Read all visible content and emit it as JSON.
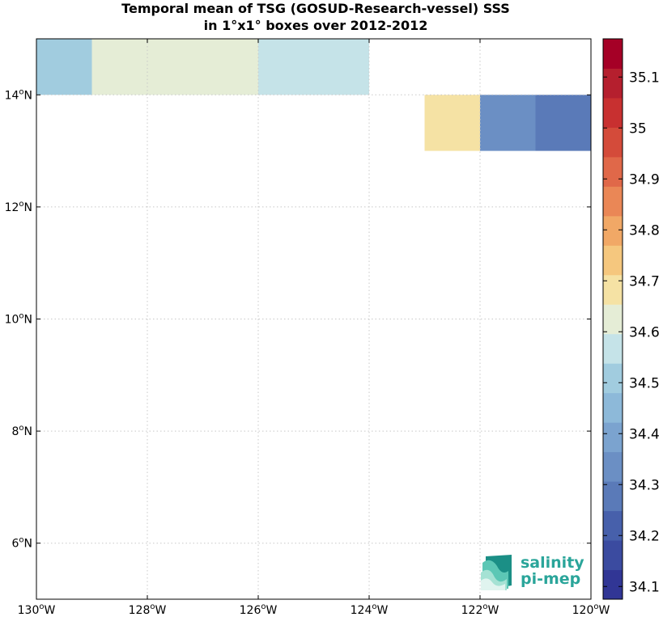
{
  "title_line1": "Temporal mean of TSG (GOSUD-Research-vessel) SSS",
  "title_line2": "in 1°x1° boxes over 2012-2012",
  "map": {
    "lon_range": [
      -130,
      -120
    ],
    "lat_range": [
      5,
      15
    ],
    "grid": "dotted",
    "x_ticks": [
      {
        "value": -130,
        "deg": "130",
        "hemi": "W"
      },
      {
        "value": -128,
        "deg": "128",
        "hemi": "W"
      },
      {
        "value": -126,
        "deg": "126",
        "hemi": "W"
      },
      {
        "value": -124,
        "deg": "124",
        "hemi": "W"
      },
      {
        "value": -122,
        "deg": "122",
        "hemi": "W"
      },
      {
        "value": -120,
        "deg": "120",
        "hemi": "W"
      }
    ],
    "y_ticks": [
      {
        "value": 6,
        "deg": "6",
        "hemi": "N"
      },
      {
        "value": 8,
        "deg": "8",
        "hemi": "N"
      },
      {
        "value": 10,
        "deg": "10",
        "hemi": "N"
      },
      {
        "value": 12,
        "deg": "12",
        "hemi": "N"
      },
      {
        "value": 14,
        "deg": "14",
        "hemi": "N"
      }
    ],
    "cells": [
      {
        "lon": -130,
        "lat": 14,
        "sss": 34.5
      },
      {
        "lon": -129,
        "lat": 14,
        "sss": 34.6
      },
      {
        "lon": -128,
        "lat": 14,
        "sss": 34.65
      },
      {
        "lon": -127,
        "lat": 14,
        "sss": 34.6
      },
      {
        "lon": -126,
        "lat": 14,
        "sss": 34.55
      },
      {
        "lon": -125,
        "lat": 14,
        "sss": 34.55
      },
      {
        "lon": -123,
        "lat": 13,
        "sss": 34.7
      },
      {
        "lon": -122,
        "lat": 13,
        "sss": 34.35
      },
      {
        "lon": -121,
        "lat": 13,
        "sss": 34.25
      }
    ]
  },
  "colorbar": {
    "min": 34.075,
    "max": 35.175,
    "colors": [
      "#313695",
      "#3b4ba0",
      "#4760ab",
      "#5a7ab8",
      "#6b8fc4",
      "#7ba3cf",
      "#8db9d9",
      "#a1ccdf",
      "#c5e3e8",
      "#e5edd6",
      "#f5e2a4",
      "#f5c77e",
      "#f1a866",
      "#ea8756",
      "#e06849",
      "#d44b3a",
      "#c83030",
      "#b51f2e",
      "#a50026"
    ],
    "tick_values": [
      34.1,
      34.2,
      34.3,
      34.4,
      34.5,
      34.6,
      34.7,
      34.8,
      34.9,
      35,
      35.1
    ],
    "tick_labels": [
      "34.1",
      "34.2",
      "34.3",
      "34.4",
      "34.5",
      "34.6",
      "34.7",
      "34.8",
      "34.9",
      "35",
      "35.1"
    ]
  },
  "logo": {
    "line1": "salinity",
    "line2": "pi-mep",
    "color": "#2aa59a"
  }
}
